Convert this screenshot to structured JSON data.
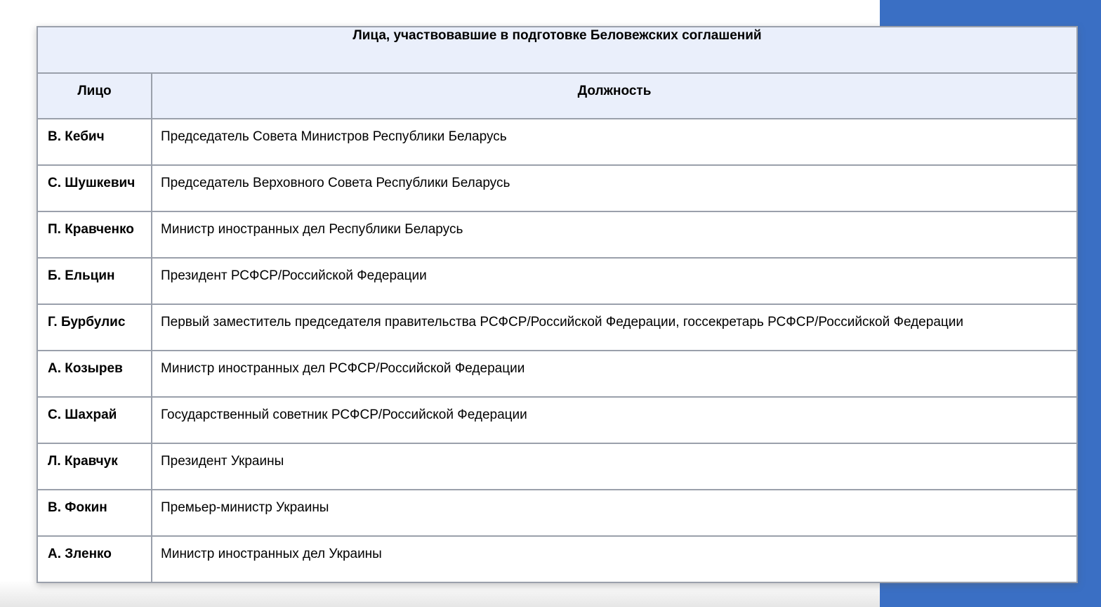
{
  "page": {
    "background_color": "#FFFFFF",
    "accent_color": "#3A6FC4",
    "header_fill_color": "#EAEFFB",
    "border_color": "#9AA0AB"
  },
  "table": {
    "title": "Лица, участвовавшие в подготовке Беловежских соглашений",
    "columns": [
      {
        "label": "Лицо"
      },
      {
        "label": "Должность"
      }
    ],
    "rows": [
      {
        "person": "В. Кебич",
        "position": "Председатель Совета Министров Республики Беларусь"
      },
      {
        "person": "С. Шушкевич",
        "position": "Председатель Верховного Совета Республики Беларусь"
      },
      {
        "person": "П. Кравченко",
        "position": "Министр иностранных дел Республики Беларусь"
      },
      {
        "person": "Б. Ельцин",
        "position": "Президент РСФСР/Российской Федерации"
      },
      {
        "person": "Г. Бурбулис",
        "position": "Первый заместитель председателя правительства РСФСР/Российской Федерации, госсекретарь РСФСР/Российской Федерации"
      },
      {
        "person": "А. Козырев",
        "position": "Министр иностранных дел РСФСР/Российской Федерации"
      },
      {
        "person": "С. Шахрай",
        "position": "Государственный советник РСФСР/Российской Федерации"
      },
      {
        "person": "Л. Кравчук",
        "position": "Президент Украины"
      },
      {
        "person": "В. Фокин",
        "position": "Премьер-министр Украины"
      },
      {
        "person": "А. Зленко",
        "position": "Министр иностранных дел Украины"
      }
    ]
  }
}
